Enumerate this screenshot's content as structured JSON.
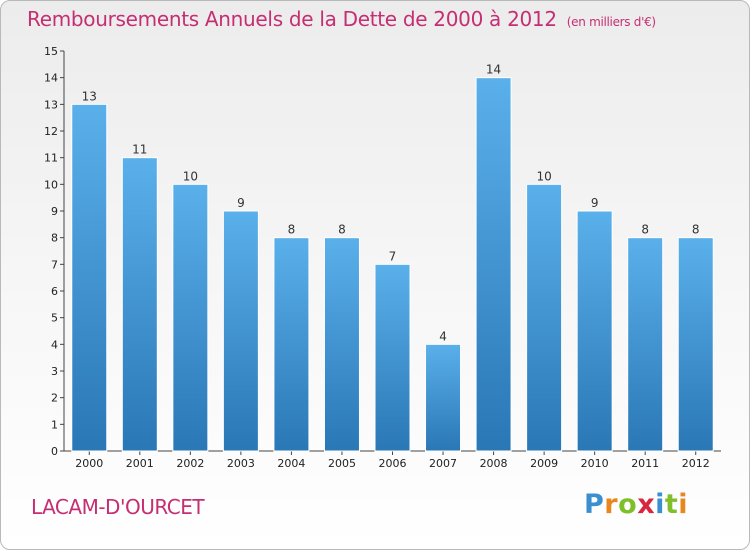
{
  "title": "Remboursements Annuels de la Dette de 2000 à 2012",
  "unit": "(en milliers d'€)",
  "commune": "LACAM-D'OURCET",
  "logo": {
    "letters": [
      "P",
      "r",
      "o",
      "x",
      "i",
      "t",
      "i"
    ],
    "colors": [
      "#3a8fd1",
      "#e8871e",
      "#7fbf2a",
      "#d7263d",
      "#3a8fd1",
      "#7fbf2a",
      "#e8871e"
    ]
  },
  "colors": {
    "accent": "#c62e73",
    "bar_top": "#5ab0ea",
    "bar_bottom": "#2a77b6"
  },
  "chart_data": {
    "type": "bar",
    "categories": [
      "2000",
      "2001",
      "2002",
      "2003",
      "2004",
      "2005",
      "2006",
      "2007",
      "2008",
      "2009",
      "2010",
      "2011",
      "2012"
    ],
    "values": [
      13,
      11,
      10,
      9,
      8,
      8,
      7,
      4,
      14,
      10,
      9,
      8,
      8
    ],
    "y_ticks": [
      "0",
      "1",
      "2",
      "3",
      "4",
      "5",
      "6",
      "7",
      "8",
      "9",
      "10",
      "11",
      "12",
      "13",
      "14",
      "15"
    ],
    "ylim": [
      0,
      15
    ],
    "title": "Remboursements Annuels de la Dette de 2000 à 2012",
    "xlabel": "",
    "ylabel": "",
    "grid": false,
    "data_labels": true
  }
}
